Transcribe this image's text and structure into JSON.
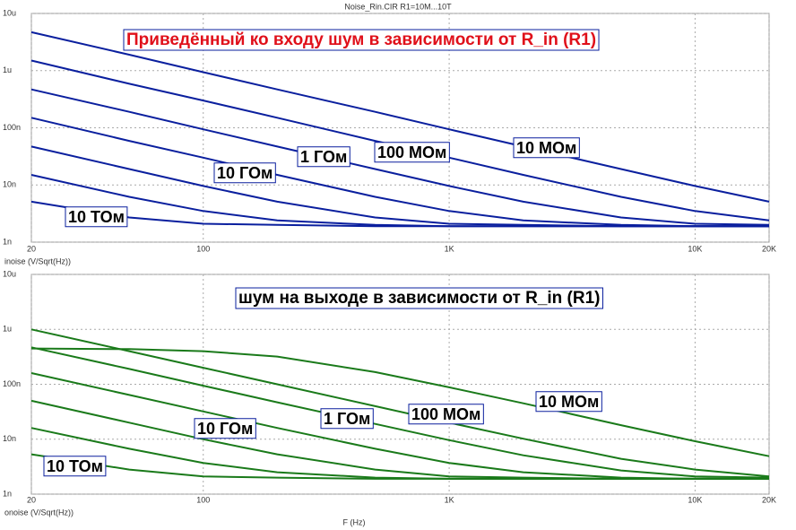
{
  "chart_data": [
    {
      "type": "line",
      "title": "Noise_Rin.CIR R1=10M...10T",
      "annotation": "Приведённый ко входу шум в зависимости от R_in (R1)",
      "annotation_color": "#e0101a",
      "ylabel": "inoise (V/Sqrt(Hz))",
      "xscale": "log",
      "yscale": "log",
      "grid": true,
      "x": [
        20,
        50,
        100,
        200,
        500,
        1000,
        2000,
        5000,
        10000,
        20000
      ],
      "xlim": [
        20,
        20000
      ],
      "xticks": [
        20,
        100,
        {
          "value": 1000,
          "label": "1K"
        },
        {
          "value": 10000,
          "label": "10K"
        },
        {
          "value": 20000,
          "label": "20K"
        }
      ],
      "ylim": [
        1e-09,
        1e-05
      ],
      "yticks": [
        {
          "value": 1e-09,
          "label": "1n"
        },
        {
          "value": 1e-08,
          "label": "10n"
        },
        {
          "value": 1e-07,
          "label": "100n"
        },
        {
          "value": 1e-06,
          "label": "1u"
        },
        {
          "value": 1e-05,
          "label": "10u"
        }
      ],
      "series": [
        {
          "name": "10 МОм",
          "color": "#0a1f9e",
          "values": [
            4.7e-06,
            1.9e-06,
            9.4e-07,
            4.7e-07,
            1.9e-07,
            9.4e-08,
            4.7e-08,
            1.9e-08,
            9.6e-09,
            5.1e-09
          ]
        },
        {
          "name": "100 МОм",
          "color": "#0a1f9e",
          "values": [
            1.5e-06,
            5.9e-07,
            3e-07,
            1.5e-07,
            5.9e-08,
            3e-08,
            1.5e-08,
            6.2e-09,
            3.5e-09,
            2.4e-09
          ]
        },
        {
          "name": "1 ГОм",
          "color": "#0a1f9e",
          "values": [
            4.7e-07,
            1.9e-07,
            9.4e-08,
            4.7e-08,
            1.9e-08,
            9.6e-09,
            5.1e-09,
            2.7e-09,
            2.1e-09,
            2e-09
          ]
        },
        {
          "name": "10 ГОм",
          "color": "#0a1f9e",
          "values": [
            1.5e-07,
            5.9e-08,
            3e-08,
            1.5e-08,
            6.2e-09,
            3.5e-09,
            2.4e-09,
            2e-09,
            1.9e-09,
            1.9e-09
          ]
        },
        {
          "color": "#0a1f9e",
          "values": [
            4.7e-08,
            1.9e-08,
            9.6e-09,
            5.1e-09,
            2.7e-09,
            2.1e-09,
            2e-09,
            1.9e-09,
            1.9e-09,
            1.9e-09
          ]
        },
        {
          "color": "#0a1f9e",
          "values": [
            1.5e-08,
            6.2e-09,
            3.5e-09,
            2.4e-09,
            2e-09,
            1.9e-09,
            1.9e-09,
            1.9e-09,
            1.9e-09,
            1.9e-09
          ]
        },
        {
          "name": "10 ТОм",
          "color": "#0a1f9e",
          "values": [
            5.1e-09,
            2.7e-09,
            2.1e-09,
            2e-09,
            1.9e-09,
            1.9e-09,
            1.9e-09,
            1.9e-09,
            1.9e-09,
            1.9e-09
          ]
        }
      ]
    },
    {
      "type": "line",
      "annotation": "шум на выходе в зависимости от R_in (R1)",
      "annotation_color": "#000000",
      "ylabel": "onoise (V/Sqrt(Hz))",
      "xlabel": "F (Hz)",
      "xscale": "log",
      "yscale": "log",
      "grid": true,
      "x": [
        20,
        50,
        100,
        200,
        500,
        1000,
        2000,
        5000,
        10000,
        20000
      ],
      "xlim": [
        20,
        20000
      ],
      "xticks": [
        20,
        100,
        {
          "value": 1000,
          "label": "1K"
        },
        {
          "value": 10000,
          "label": "10K"
        },
        {
          "value": 20000,
          "label": "20K"
        }
      ],
      "ylim": [
        1e-09,
        1e-05
      ],
      "yticks": [
        {
          "value": 1e-09,
          "label": "1n"
        },
        {
          "value": 1e-08,
          "label": "10n"
        },
        {
          "value": 1e-07,
          "label": "100n"
        },
        {
          "value": 1e-06,
          "label": "1u"
        },
        {
          "value": 1e-05,
          "label": "10u"
        }
      ],
      "series": [
        {
          "name": "10 МОм",
          "color": "#1a7a1a",
          "values": [
            4.48e-07,
            4.37e-07,
            4e-07,
            3.2e-07,
            1.67e-07,
            8.8e-08,
            4.5e-08,
            1.8e-08,
            9.2e-09,
            4.9e-09
          ]
        },
        {
          "name": "100 МОм",
          "color": "#1a7a1a",
          "values": [
            1e-06,
            4e-07,
            2e-07,
            1e-07,
            4e-08,
            2e-08,
            1.02e-08,
            4.4e-09,
            2.8e-09,
            2.1e-09
          ]
        },
        {
          "name": "1 ГОм",
          "color": "#1a7a1a",
          "values": [
            4.7e-07,
            1.9e-07,
            9.4e-08,
            4.7e-08,
            1.9e-08,
            9.6e-09,
            5.1e-09,
            2.7e-09,
            2.1e-09,
            2e-09
          ]
        },
        {
          "name": "10 ГОм",
          "color": "#1a7a1a",
          "values": [
            1.6e-07,
            6.4e-08,
            3.2e-08,
            1.6e-08,
            6.7e-09,
            3.7e-09,
            2.5e-09,
            2e-09,
            1.9e-09,
            1.9e-09
          ]
        },
        {
          "color": "#1a7a1a",
          "values": [
            5e-08,
            2e-08,
            1e-08,
            5.3e-09,
            2.8e-09,
            2.1e-09,
            2e-09,
            1.9e-09,
            1.9e-09,
            1.9e-09
          ]
        },
        {
          "color": "#1a7a1a",
          "values": [
            1.6e-08,
            6.7e-09,
            3.7e-09,
            2.5e-09,
            2e-09,
            1.9e-09,
            1.9e-09,
            1.9e-09,
            1.9e-09,
            1.9e-09
          ]
        },
        {
          "name": "10 ТОм",
          "color": "#1a7a1a",
          "values": [
            5.3e-09,
            2.8e-09,
            2.1e-09,
            2e-09,
            1.9e-09,
            1.9e-09,
            1.9e-09,
            1.9e-09,
            1.9e-09,
            1.9e-09
          ]
        }
      ]
    }
  ]
}
